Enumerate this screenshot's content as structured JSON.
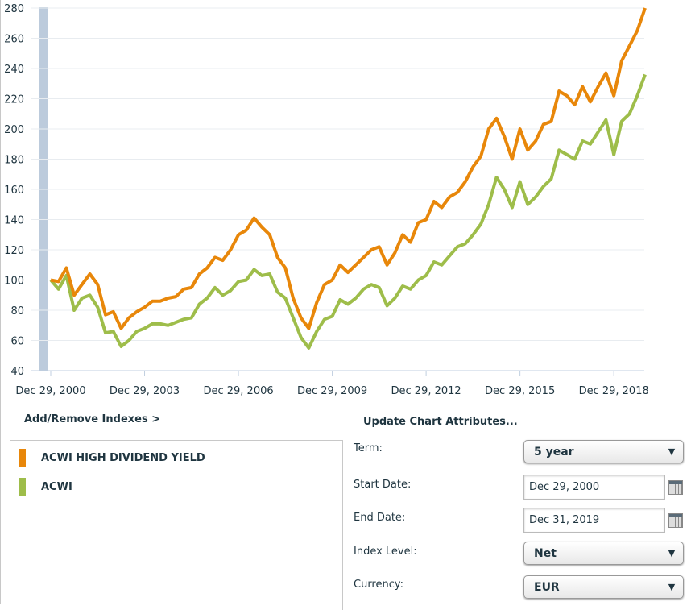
{
  "chart_data": {
    "type": "line",
    "ylim": [
      40,
      280
    ],
    "yticks": [
      "40",
      "60",
      "80",
      "100",
      "120",
      "140",
      "160",
      "180",
      "200",
      "220",
      "240",
      "260",
      "280"
    ],
    "xticks": [
      "Dec 29, 2000",
      "Dec 29, 2003",
      "Dec 29, 2006",
      "Dec 29, 2009",
      "Dec 29, 2012",
      "Dec 29, 2015",
      "Dec 29, 2018"
    ],
    "xlim": [
      "2000-12",
      "2019-12"
    ],
    "grid": true,
    "x": [
      "2000-12",
      "2001-03",
      "2001-06",
      "2001-09",
      "2001-12",
      "2002-03",
      "2002-06",
      "2002-09",
      "2002-12",
      "2003-03",
      "2003-06",
      "2003-09",
      "2003-12",
      "2004-03",
      "2004-06",
      "2004-09",
      "2004-12",
      "2005-03",
      "2005-06",
      "2005-09",
      "2005-12",
      "2006-03",
      "2006-06",
      "2006-09",
      "2006-12",
      "2007-03",
      "2007-06",
      "2007-09",
      "2007-12",
      "2008-03",
      "2008-06",
      "2008-09",
      "2008-12",
      "2009-03",
      "2009-06",
      "2009-09",
      "2009-12",
      "2010-03",
      "2010-06",
      "2010-09",
      "2010-12",
      "2011-03",
      "2011-06",
      "2011-09",
      "2011-12",
      "2012-03",
      "2012-06",
      "2012-09",
      "2012-12",
      "2013-03",
      "2013-06",
      "2013-09",
      "2013-12",
      "2014-03",
      "2014-06",
      "2014-09",
      "2014-12",
      "2015-03",
      "2015-06",
      "2015-09",
      "2015-12",
      "2016-03",
      "2016-06",
      "2016-09",
      "2016-12",
      "2017-03",
      "2017-06",
      "2017-09",
      "2017-12",
      "2018-03",
      "2018-06",
      "2018-09",
      "2018-12",
      "2019-03",
      "2019-06",
      "2019-09",
      "2019-12"
    ],
    "series": [
      {
        "name": "ACWI HIGH DIVIDEND YIELD",
        "color": "#e8870a",
        "values": [
          100,
          99,
          108,
          90,
          97,
          104,
          97,
          77,
          79,
          68,
          75,
          79,
          82,
          86,
          86,
          88,
          89,
          94,
          95,
          104,
          108,
          115,
          113,
          120,
          130,
          133,
          141,
          135,
          130,
          115,
          108,
          88,
          75,
          68,
          85,
          97,
          100,
          110,
          105,
          110,
          115,
          120,
          122,
          110,
          118,
          130,
          125,
          138,
          140,
          152,
          148,
          155,
          158,
          165,
          175,
          182,
          200,
          207,
          195,
          180,
          200,
          186,
          192,
          203,
          205,
          225,
          222,
          216,
          228,
          218,
          228,
          237,
          222,
          245,
          255,
          265,
          280
        ]
      },
      {
        "name": "ACWI",
        "color": "#9ebd4a",
        "values": [
          100,
          94,
          103,
          80,
          88,
          90,
          82,
          65,
          66,
          56,
          60,
          66,
          68,
          71,
          71,
          70,
          72,
          74,
          75,
          84,
          88,
          95,
          90,
          93,
          99,
          100,
          107,
          103,
          104,
          92,
          88,
          75,
          62,
          55,
          66,
          74,
          76,
          87,
          84,
          88,
          94,
          97,
          95,
          83,
          88,
          96,
          94,
          100,
          103,
          112,
          110,
          116,
          122,
          124,
          130,
          137,
          150,
          168,
          160,
          148,
          165,
          150,
          155,
          162,
          167,
          186,
          183,
          180,
          192,
          190,
          198,
          206,
          183,
          205,
          210,
          222,
          236
        ]
      }
    ]
  },
  "panel": {
    "add_remove": "Add/Remove Indexes >",
    "update_title": "Update Chart Attributes...",
    "legend": [
      "ACWI HIGH DIVIDEND YIELD",
      "ACWI"
    ],
    "term_label": "Term:",
    "term_value": "5 year",
    "start_label": "Start Date:",
    "start_value": "Dec 29, 2000",
    "end_label": "End Date:",
    "end_value": "Dec 31, 2019",
    "level_label": "Index Level:",
    "level_value": "Net",
    "currency_label": "Currency:",
    "currency_value": "EUR",
    "dropdown_icon": "triangle-down",
    "calendar_icon": "calendar"
  }
}
